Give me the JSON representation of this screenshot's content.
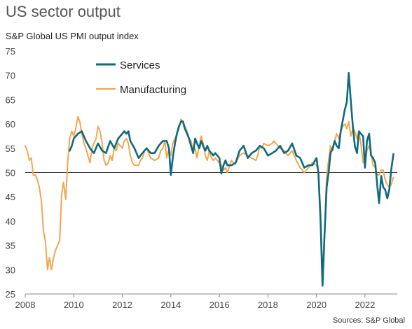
{
  "chart_data": {
    "type": "line",
    "title": "US sector output",
    "subtitle": "S&P Global US PMI output index",
    "source": "Sources: S&P Global",
    "ylim": [
      25,
      75
    ],
    "yticks": [
      25,
      30,
      35,
      40,
      45,
      50,
      55,
      60,
      65,
      70,
      75
    ],
    "xlim": [
      2008,
      2023.33
    ],
    "xticks": [
      2008,
      2010,
      2012,
      2014,
      2016,
      2018,
      2020,
      2022
    ],
    "reference_line": 50,
    "legend": {
      "position": "top-left"
    },
    "series": [
      {
        "name": "Services",
        "color": "#0e6a7e",
        "points": [
          [
            2009.83,
            54.5
          ],
          [
            2009.92,
            55.5
          ],
          [
            2010.0,
            57.0
          ],
          [
            2010.17,
            58.0
          ],
          [
            2010.33,
            58.5
          ],
          [
            2010.5,
            56.5
          ],
          [
            2010.67,
            55.0
          ],
          [
            2010.83,
            54.0
          ],
          [
            2011.0,
            56.0
          ],
          [
            2011.17,
            54.5
          ],
          [
            2011.33,
            54.0
          ],
          [
            2011.5,
            56.5
          ],
          [
            2011.67,
            55.0
          ],
          [
            2011.83,
            57.0
          ],
          [
            2012.0,
            58.0
          ],
          [
            2012.08,
            58.5
          ],
          [
            2012.17,
            58.0
          ],
          [
            2012.25,
            58.5
          ],
          [
            2012.33,
            56.5
          ],
          [
            2012.5,
            55.0
          ],
          [
            2012.67,
            53.0
          ],
          [
            2012.83,
            54.0
          ],
          [
            2013.0,
            55.0
          ],
          [
            2013.17,
            54.0
          ],
          [
            2013.33,
            54.0
          ],
          [
            2013.5,
            55.5
          ],
          [
            2013.67,
            56.5
          ],
          [
            2013.83,
            56.5
          ],
          [
            2013.92,
            55.0
          ],
          [
            2014.0,
            49.5
          ],
          [
            2014.08,
            53.0
          ],
          [
            2014.17,
            56.0
          ],
          [
            2014.25,
            58.0
          ],
          [
            2014.33,
            59.5
          ],
          [
            2014.42,
            60.5
          ],
          [
            2014.5,
            60.5
          ],
          [
            2014.58,
            59.0
          ],
          [
            2014.67,
            58.0
          ],
          [
            2014.75,
            57.0
          ],
          [
            2014.83,
            55.5
          ],
          [
            2014.92,
            54.0
          ],
          [
            2015.0,
            57.0
          ],
          [
            2015.08,
            56.0
          ],
          [
            2015.17,
            55.0
          ],
          [
            2015.25,
            56.5
          ],
          [
            2015.33,
            55.5
          ],
          [
            2015.42,
            54.5
          ],
          [
            2015.5,
            55.5
          ],
          [
            2015.58,
            54.5
          ],
          [
            2015.67,
            54.0
          ],
          [
            2015.75,
            53.5
          ],
          [
            2015.83,
            54.0
          ],
          [
            2016.0,
            53.0
          ],
          [
            2016.08,
            49.8
          ],
          [
            2016.17,
            51.5
          ],
          [
            2016.25,
            52.5
          ],
          [
            2016.33,
            51.5
          ],
          [
            2016.42,
            51.5
          ],
          [
            2016.5,
            51.5
          ],
          [
            2016.67,
            52.0
          ],
          [
            2016.83,
            54.5
          ],
          [
            2017.0,
            55.5
          ],
          [
            2017.17,
            53.0
          ],
          [
            2017.33,
            54.0
          ],
          [
            2017.5,
            54.5
          ],
          [
            2017.67,
            55.5
          ],
          [
            2017.83,
            55.0
          ],
          [
            2018.0,
            53.5
          ],
          [
            2018.17,
            54.0
          ],
          [
            2018.33,
            54.5
          ],
          [
            2018.5,
            55.5
          ],
          [
            2018.67,
            54.0
          ],
          [
            2018.83,
            54.5
          ],
          [
            2019.0,
            56.0
          ],
          [
            2019.17,
            53.5
          ],
          [
            2019.33,
            53.0
          ],
          [
            2019.5,
            51.0
          ],
          [
            2019.67,
            51.5
          ],
          [
            2019.83,
            51.5
          ],
          [
            2020.0,
            53.0
          ],
          [
            2020.08,
            50.0
          ],
          [
            2020.17,
            40.0
          ],
          [
            2020.25,
            26.7
          ],
          [
            2020.33,
            37.0
          ],
          [
            2020.42,
            47.0
          ],
          [
            2020.5,
            50.0
          ],
          [
            2020.58,
            54.0
          ],
          [
            2020.67,
            55.0
          ],
          [
            2020.75,
            56.5
          ],
          [
            2020.83,
            55.5
          ],
          [
            2020.92,
            55.0
          ],
          [
            2021.0,
            58.5
          ],
          [
            2021.17,
            63.0
          ],
          [
            2021.25,
            64.5
          ],
          [
            2021.33,
            70.5
          ],
          [
            2021.42,
            64.5
          ],
          [
            2021.5,
            59.5
          ],
          [
            2021.58,
            55.5
          ],
          [
            2021.67,
            54.0
          ],
          [
            2021.75,
            58.5
          ],
          [
            2021.83,
            58.0
          ],
          [
            2021.92,
            57.5
          ],
          [
            2022.0,
            51.0
          ],
          [
            2022.08,
            56.5
          ],
          [
            2022.17,
            58.0
          ],
          [
            2022.25,
            53.5
          ],
          [
            2022.33,
            53.0
          ],
          [
            2022.42,
            52.0
          ],
          [
            2022.5,
            47.5
          ],
          [
            2022.58,
            43.7
          ],
          [
            2022.67,
            49.3
          ],
          [
            2022.75,
            47.0
          ],
          [
            2022.83,
            46.5
          ],
          [
            2022.92,
            44.7
          ],
          [
            2023.0,
            46.5
          ],
          [
            2023.08,
            50.5
          ],
          [
            2023.17,
            53.8
          ]
        ]
      },
      {
        "name": "Manufacturing",
        "color": "#f0a850",
        "points": [
          [
            2008.0,
            55.5
          ],
          [
            2008.08,
            54.5
          ],
          [
            2008.17,
            52.5
          ],
          [
            2008.25,
            53.0
          ],
          [
            2008.33,
            49.5
          ],
          [
            2008.42,
            49.5
          ],
          [
            2008.5,
            48.5
          ],
          [
            2008.58,
            47.0
          ],
          [
            2008.67,
            44.0
          ],
          [
            2008.75,
            38.0
          ],
          [
            2008.83,
            36.0
          ],
          [
            2008.92,
            30.0
          ],
          [
            2009.0,
            32.5
          ],
          [
            2009.08,
            30.0
          ],
          [
            2009.17,
            32.5
          ],
          [
            2009.25,
            34.0
          ],
          [
            2009.33,
            35.0
          ],
          [
            2009.42,
            36.0
          ],
          [
            2009.5,
            45.5
          ],
          [
            2009.58,
            48.0
          ],
          [
            2009.67,
            44.5
          ],
          [
            2009.75,
            52.0
          ],
          [
            2009.83,
            57.0
          ],
          [
            2009.92,
            58.5
          ],
          [
            2010.0,
            57.5
          ],
          [
            2010.08,
            59.0
          ],
          [
            2010.17,
            61.5
          ],
          [
            2010.25,
            60.5
          ],
          [
            2010.33,
            58.0
          ],
          [
            2010.42,
            56.0
          ],
          [
            2010.5,
            55.0
          ],
          [
            2010.58,
            53.5
          ],
          [
            2010.67,
            52.0
          ],
          [
            2010.75,
            55.0
          ],
          [
            2010.83,
            56.0
          ],
          [
            2010.92,
            57.0
          ],
          [
            2011.0,
            59.5
          ],
          [
            2011.08,
            58.5
          ],
          [
            2011.17,
            56.0
          ],
          [
            2011.25,
            52.5
          ],
          [
            2011.33,
            51.5
          ],
          [
            2011.42,
            52.0
          ],
          [
            2011.5,
            53.5
          ],
          [
            2011.58,
            52.5
          ],
          [
            2011.67,
            55.0
          ],
          [
            2011.75,
            54.5
          ],
          [
            2011.83,
            56.0
          ],
          [
            2011.92,
            55.5
          ],
          [
            2012.0,
            55.0
          ],
          [
            2012.08,
            56.5
          ],
          [
            2012.17,
            57.0
          ],
          [
            2012.25,
            56.0
          ],
          [
            2012.33,
            53.5
          ],
          [
            2012.42,
            52.0
          ],
          [
            2012.5,
            51.5
          ],
          [
            2012.67,
            51.5
          ],
          [
            2012.75,
            52.5
          ],
          [
            2012.83,
            53.0
          ],
          [
            2012.92,
            54.5
          ],
          [
            2013.0,
            55.0
          ],
          [
            2013.17,
            53.0
          ],
          [
            2013.33,
            52.5
          ],
          [
            2013.5,
            53.0
          ],
          [
            2013.58,
            54.5
          ],
          [
            2013.67,
            55.0
          ],
          [
            2013.75,
            56.5
          ],
          [
            2013.83,
            53.0
          ],
          [
            2013.92,
            55.0
          ],
          [
            2014.0,
            53.5
          ],
          [
            2014.08,
            56.0
          ],
          [
            2014.17,
            57.0
          ],
          [
            2014.25,
            58.0
          ],
          [
            2014.33,
            59.0
          ],
          [
            2014.42,
            61.0
          ],
          [
            2014.5,
            60.5
          ],
          [
            2014.58,
            59.5
          ],
          [
            2014.67,
            58.5
          ],
          [
            2014.75,
            57.0
          ],
          [
            2014.83,
            56.5
          ],
          [
            2014.92,
            54.5
          ],
          [
            2015.0,
            55.0
          ],
          [
            2015.08,
            53.0
          ],
          [
            2015.17,
            55.5
          ],
          [
            2015.25,
            57.5
          ],
          [
            2015.33,
            56.0
          ],
          [
            2015.42,
            53.5
          ],
          [
            2015.5,
            52.5
          ],
          [
            2015.58,
            54.5
          ],
          [
            2015.67,
            53.0
          ],
          [
            2015.75,
            52.5
          ],
          [
            2015.83,
            53.0
          ],
          [
            2016.0,
            52.0
          ],
          [
            2016.08,
            51.5
          ],
          [
            2016.17,
            50.5
          ],
          [
            2016.25,
            51.0
          ],
          [
            2016.33,
            50.0
          ],
          [
            2016.42,
            51.5
          ],
          [
            2016.5,
            52.5
          ],
          [
            2016.58,
            52.0
          ],
          [
            2016.67,
            52.0
          ],
          [
            2016.83,
            53.5
          ],
          [
            2017.0,
            54.0
          ],
          [
            2017.17,
            53.5
          ],
          [
            2017.33,
            53.0
          ],
          [
            2017.5,
            52.5
          ],
          [
            2017.58,
            53.5
          ],
          [
            2017.67,
            55.5
          ],
          [
            2017.75,
            55.0
          ],
          [
            2017.83,
            56.0
          ],
          [
            2018.0,
            55.5
          ],
          [
            2018.17,
            56.0
          ],
          [
            2018.25,
            56.5
          ],
          [
            2018.33,
            56.0
          ],
          [
            2018.5,
            55.0
          ],
          [
            2018.67,
            54.5
          ],
          [
            2018.83,
            53.5
          ],
          [
            2019.0,
            54.5
          ],
          [
            2019.17,
            52.5
          ],
          [
            2019.33,
            51.0
          ],
          [
            2019.42,
            50.5
          ],
          [
            2019.5,
            50.0
          ],
          [
            2019.67,
            51.0
          ],
          [
            2019.83,
            52.0
          ],
          [
            2020.0,
            51.5
          ],
          [
            2020.08,
            50.5
          ],
          [
            2020.17,
            42.0
          ],
          [
            2020.25,
            28.5
          ],
          [
            2020.33,
            36.5
          ],
          [
            2020.42,
            49.5
          ],
          [
            2020.5,
            52.5
          ],
          [
            2020.58,
            55.5
          ],
          [
            2020.67,
            54.5
          ],
          [
            2020.75,
            56.5
          ],
          [
            2020.83,
            58.0
          ],
          [
            2020.92,
            57.0
          ],
          [
            2021.0,
            58.5
          ],
          [
            2021.08,
            59.5
          ],
          [
            2021.17,
            60.0
          ],
          [
            2021.25,
            59.0
          ],
          [
            2021.33,
            60.5
          ],
          [
            2021.42,
            57.5
          ],
          [
            2021.5,
            59.0
          ],
          [
            2021.58,
            58.5
          ],
          [
            2021.67,
            57.0
          ],
          [
            2021.75,
            58.5
          ],
          [
            2021.83,
            56.0
          ],
          [
            2021.92,
            52.0
          ],
          [
            2022.0,
            52.0
          ],
          [
            2022.08,
            54.5
          ],
          [
            2022.17,
            55.5
          ],
          [
            2022.25,
            54.0
          ],
          [
            2022.33,
            51.5
          ],
          [
            2022.42,
            51.0
          ],
          [
            2022.5,
            49.5
          ],
          [
            2022.58,
            49.5
          ],
          [
            2022.67,
            50.5
          ],
          [
            2022.75,
            50.5
          ],
          [
            2022.83,
            48.5
          ],
          [
            2022.92,
            47.5
          ],
          [
            2023.0,
            47.0
          ],
          [
            2023.08,
            47.5
          ],
          [
            2023.17,
            49.0
          ]
        ]
      }
    ]
  }
}
